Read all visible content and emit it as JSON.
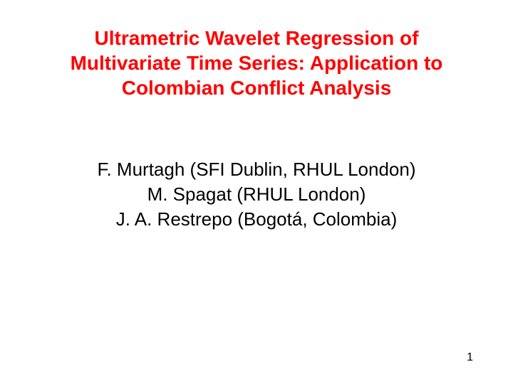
{
  "slide": {
    "title": {
      "line1": "Ultrametric Wavelet Regression of",
      "line2": "Multivariate Time Series: Application to",
      "line3": "Colombian Conflict Analysis",
      "color": "#ff0000",
      "fontsize": 28,
      "weight": "bold"
    },
    "authors": {
      "line1": "F. Murtagh (SFI Dublin, RHUL London)",
      "line2": "M. Spagat (RHUL London)",
      "line3": "J. A. Restrepo (Bogotá, Colombia)",
      "color": "#000000",
      "fontsize": 26
    },
    "page_number": "1",
    "background_color": "#ffffff"
  }
}
